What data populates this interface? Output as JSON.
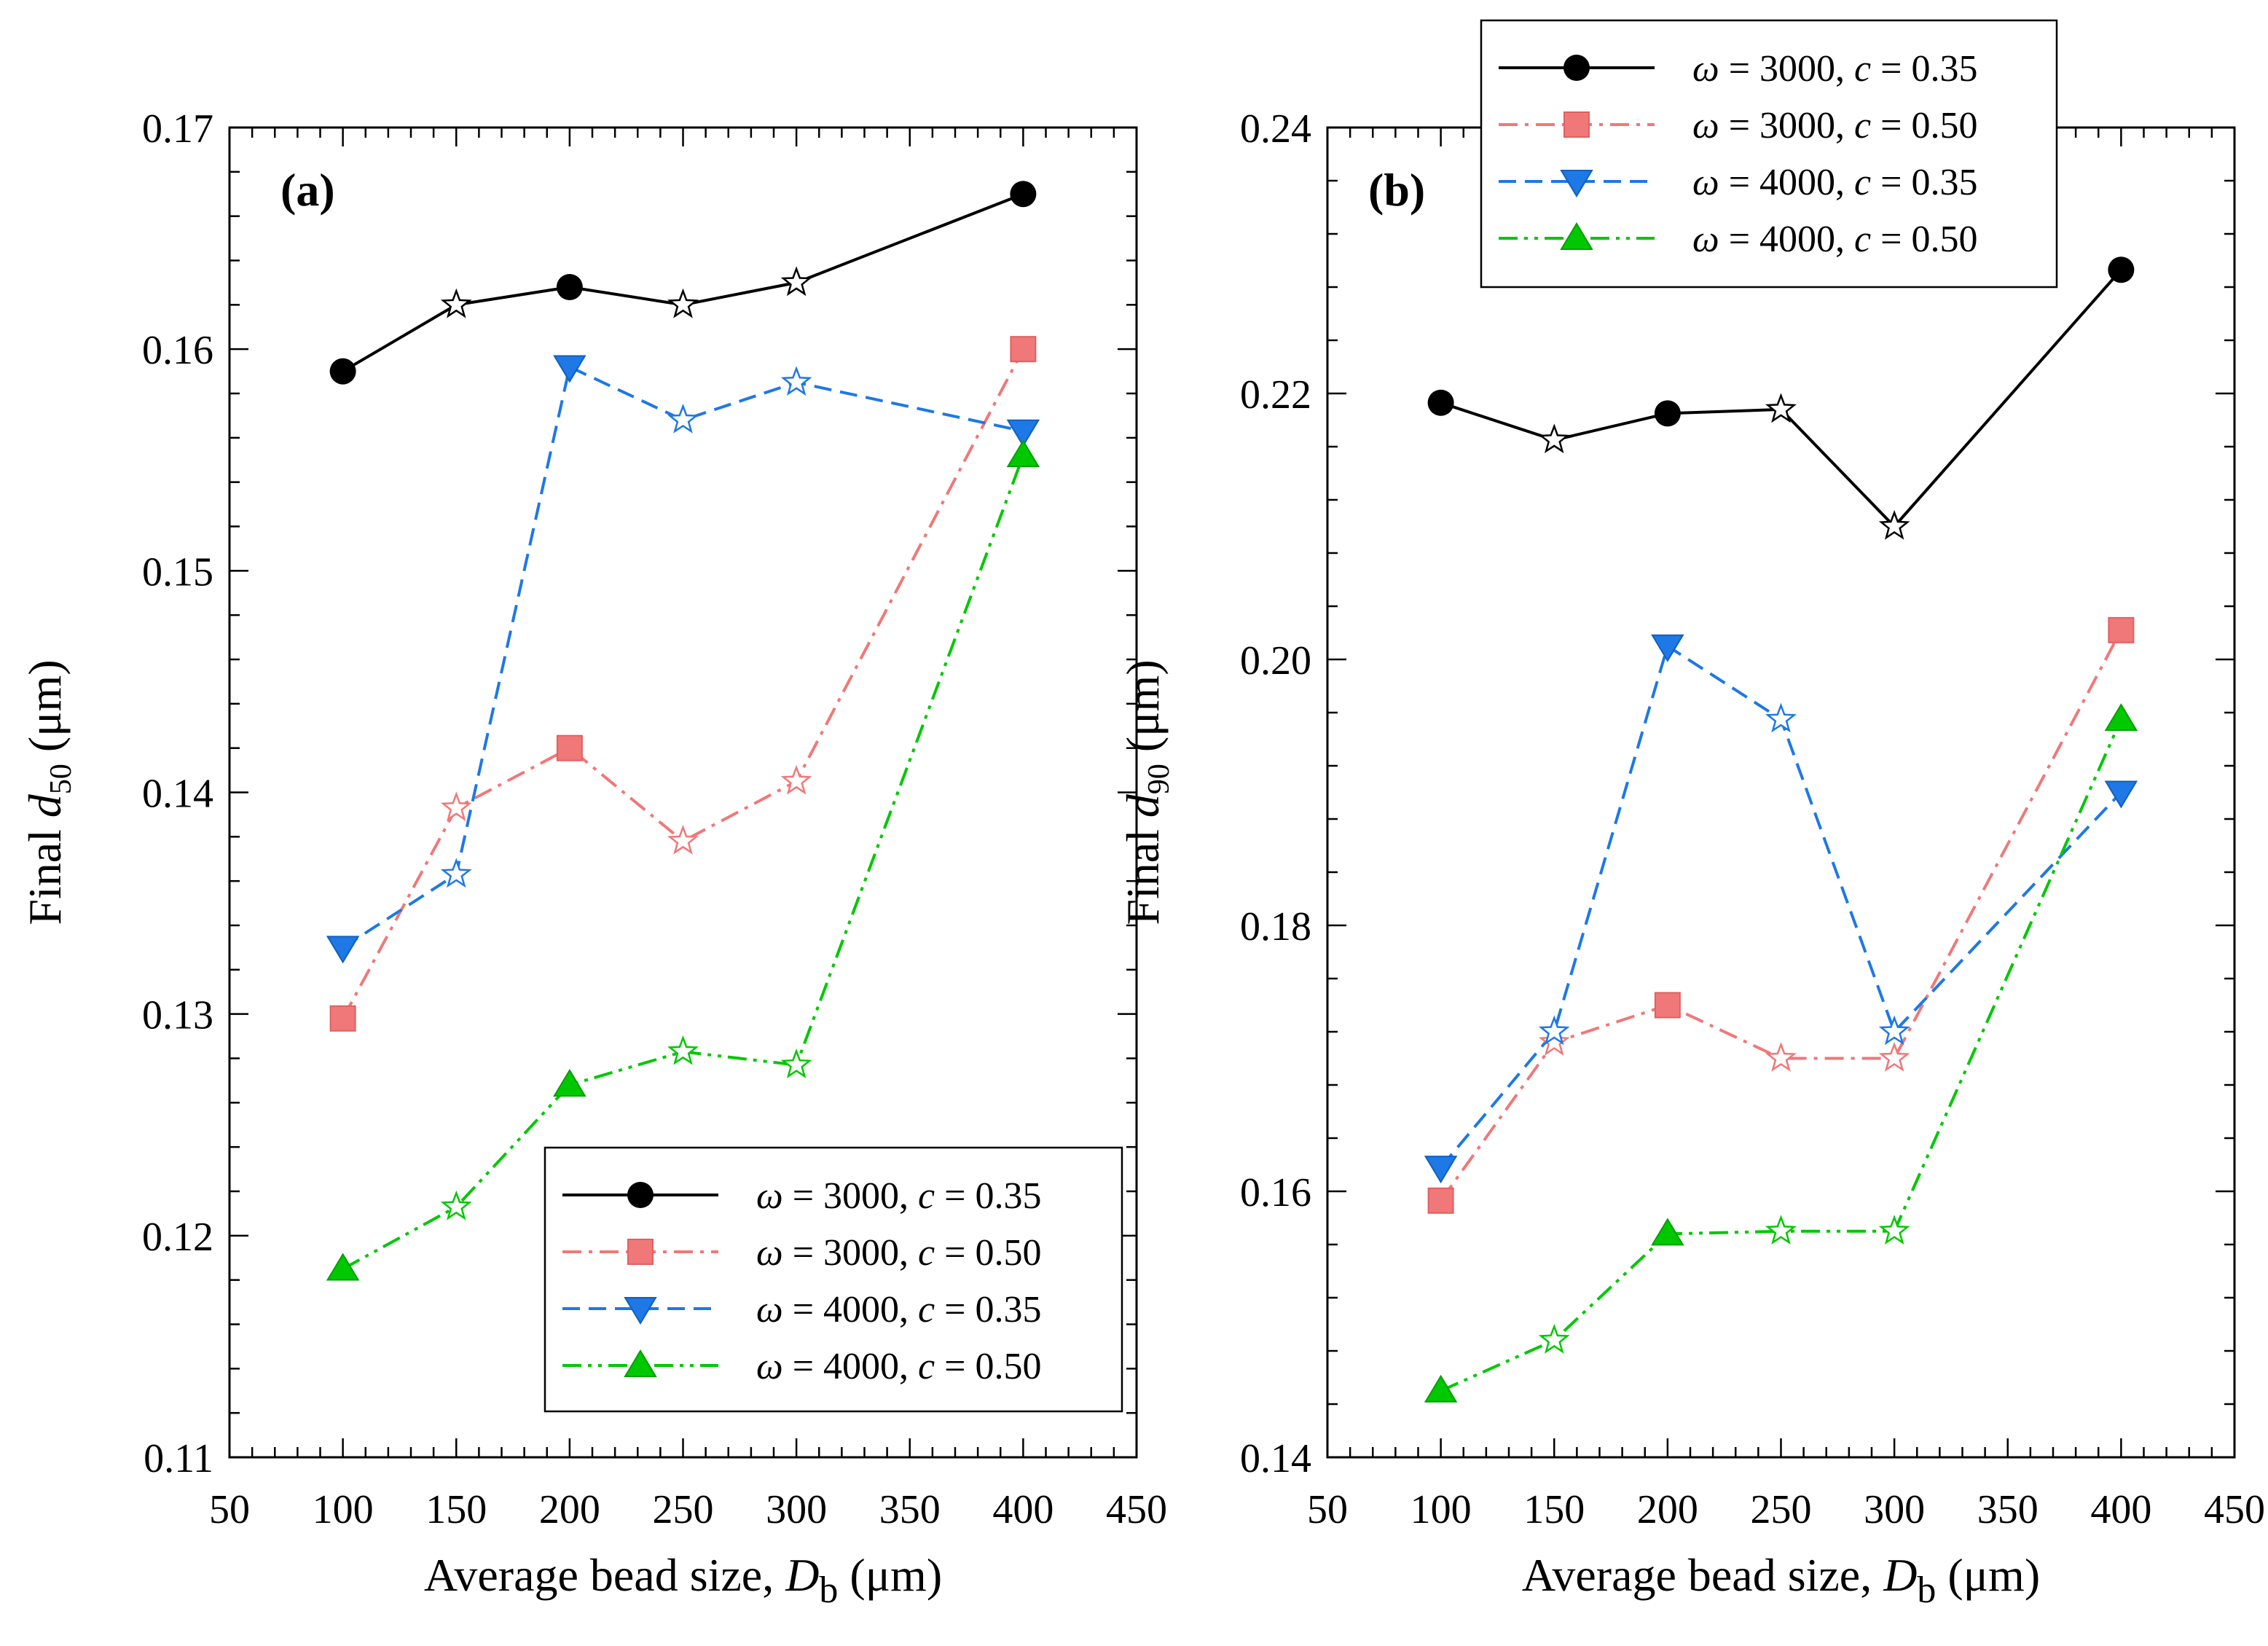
{
  "chart_data": [
    {
      "type": "line",
      "panel_label": "(a)",
      "xlabel": {
        "prefix": "Average bead size, ",
        "symbol": "D",
        "sub": "b",
        "unit": " (μm)"
      },
      "ylabel": {
        "prefix": "Final ",
        "symbol": "d",
        "sub": "50",
        "unit": " (μm)"
      },
      "xlim": [
        50,
        450
      ],
      "ylim": [
        0.11,
        0.17
      ],
      "xticks": [
        50,
        100,
        150,
        200,
        250,
        300,
        350,
        400,
        450
      ],
      "yticks": [
        0.11,
        0.12,
        0.13,
        0.14,
        0.15,
        0.16,
        0.17
      ],
      "ytick_labels": [
        "0.11",
        "0.12",
        "0.13",
        "0.14",
        "0.15",
        "0.16",
        "0.17"
      ],
      "legend_position": "bottom-right",
      "x": [
        100,
        150,
        200,
        250,
        300,
        400
      ],
      "hollow_star_x": [
        150,
        250,
        300
      ],
      "series": [
        {
          "name": "ω = 3000, c = 0.35",
          "omega": "3000",
          "c": "0.35",
          "color": "#000000",
          "marker": "circle",
          "dash": "solid",
          "values": [
            0.159,
            0.162,
            0.1628,
            0.162,
            0.163,
            0.167
          ]
        },
        {
          "name": "ω = 3000, c = 0.50",
          "omega": "3000",
          "c": "0.50",
          "color": "#f07878",
          "marker": "square",
          "dash": "dashdot",
          "values": [
            0.1298,
            0.1393,
            0.142,
            0.1378,
            0.1405,
            0.16
          ]
        },
        {
          "name": "ω = 4000, c = 0.35",
          "omega": "4000",
          "c": "0.35",
          "color": "#1e78e6",
          "marker": "triangle-down",
          "dash": "dash",
          "values": [
            0.133,
            0.1363,
            0.1592,
            0.1568,
            0.1585,
            0.1563
          ]
        },
        {
          "name": "ω = 4000, c = 0.50",
          "omega": "4000",
          "c": "0.50",
          "color": "#00c800",
          "marker": "triangle-up",
          "dash": "dashdotdot",
          "values": [
            0.1185,
            0.1213,
            0.1268,
            0.1283,
            0.1277,
            0.1552
          ]
        }
      ]
    },
    {
      "type": "line",
      "panel_label": "(b)",
      "xlabel": {
        "prefix": "Average bead size, ",
        "symbol": "D",
        "sub": "b",
        "unit": " (μm)"
      },
      "ylabel": {
        "prefix": "Final ",
        "symbol": "d",
        "sub": "90",
        "unit": " (μm)"
      },
      "xlim": [
        50,
        450
      ],
      "ylim": [
        0.14,
        0.24
      ],
      "xticks": [
        50,
        100,
        150,
        200,
        250,
        300,
        350,
        400,
        450
      ],
      "yticks": [
        0.14,
        0.16,
        0.18,
        0.2,
        0.22,
        0.24
      ],
      "ytick_labels": [
        "0.14",
        "0.16",
        "0.18",
        "0.20",
        "0.22",
        "0.24"
      ],
      "legend_position": "top-center (above plot)",
      "x": [
        100,
        150,
        200,
        250,
        300,
        400
      ],
      "hollow_star_x": [
        150,
        250,
        300
      ],
      "series": [
        {
          "name": "ω = 3000, c = 0.35",
          "omega": "3000",
          "c": "0.35",
          "color": "#000000",
          "marker": "circle",
          "dash": "solid",
          "values": [
            0.2193,
            0.2165,
            0.2185,
            0.2188,
            0.21,
            0.2293
          ]
        },
        {
          "name": "ω = 3000, c = 0.50",
          "omega": "3000",
          "c": "0.50",
          "color": "#f07878",
          "marker": "square",
          "dash": "dashdot",
          "values": [
            0.1593,
            0.1712,
            0.174,
            0.17,
            0.17,
            0.2022
          ]
        },
        {
          "name": "ω = 4000, c = 0.35",
          "omega": "4000",
          "c": "0.35",
          "color": "#1e78e6",
          "marker": "triangle-down",
          "dash": "dash",
          "values": [
            0.1618,
            0.172,
            0.201,
            0.1955,
            0.172,
            0.19
          ]
        },
        {
          "name": "ω = 4000, c = 0.50",
          "omega": "4000",
          "c": "0.50",
          "color": "#00c800",
          "marker": "triangle-up",
          "dash": "dashdotdot",
          "values": [
            0.145,
            0.1488,
            0.1568,
            0.157,
            0.157,
            0.1955
          ]
        }
      ]
    }
  ]
}
